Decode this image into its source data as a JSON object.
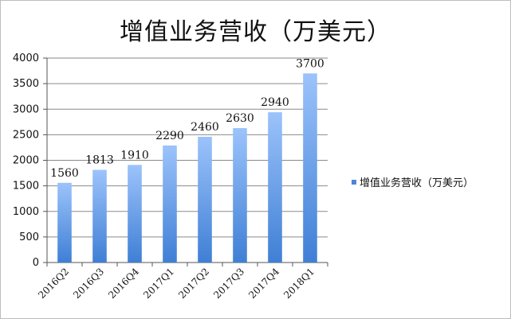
{
  "chart_data": {
    "type": "bar",
    "title": "增值业务营收（万美元）",
    "categories": [
      "2016Q2",
      "2016Q3",
      "2016Q4",
      "2017Q1",
      "2017Q2",
      "2017Q3",
      "2017Q4",
      "2018Q1"
    ],
    "series": [
      {
        "name": "增值业务营收（万美元）",
        "values": [
          1560,
          1813,
          1910,
          2290,
          2460,
          2630,
          2940,
          3700
        ],
        "color_top": "#9cc3fb",
        "color_bottom": "#3f7fd5"
      }
    ],
    "ylim": [
      0,
      4000
    ],
    "yticks": [
      0,
      500,
      1000,
      1500,
      2000,
      2500,
      3000,
      3500,
      4000
    ],
    "grid": true,
    "legend_position": "right"
  }
}
